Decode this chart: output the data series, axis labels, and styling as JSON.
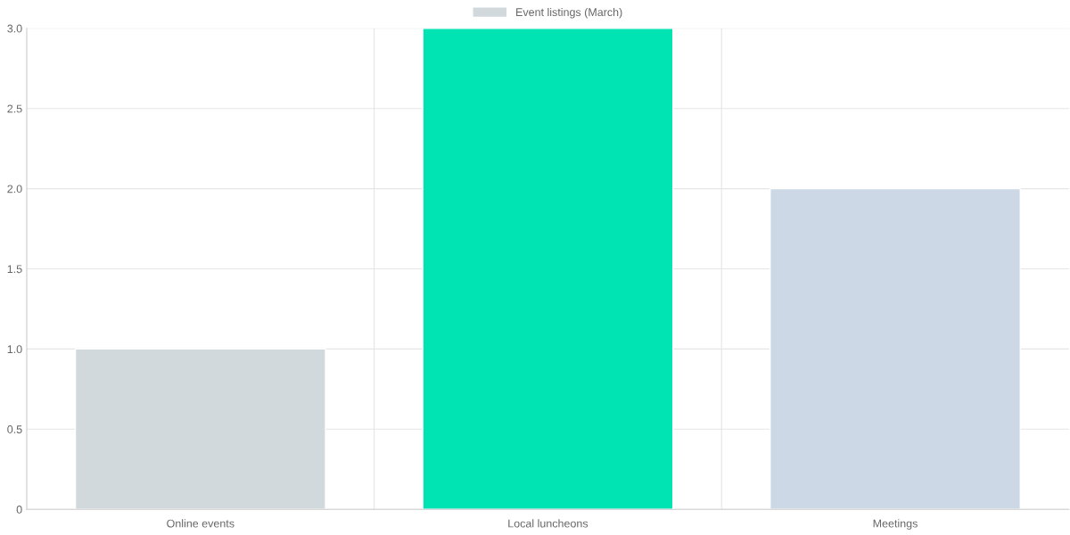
{
  "chart_data": {
    "type": "bar",
    "categories": [
      "Online events",
      "Local luncheons",
      "Meetings"
    ],
    "series": [
      {
        "name": "Event listings (March)",
        "color": "#d2d9dc",
        "colors": [
          "#d2d9dc",
          "#00e3b3",
          "#ccd8e5"
        ],
        "values": [
          1,
          3,
          2
        ]
      }
    ],
    "ylim": [
      0,
      3
    ],
    "yticks": [
      0,
      0.5,
      {
        "value": 1,
        "label": "1.0"
      },
      1.5,
      {
        "value": 2,
        "label": "2.0"
      },
      2.5,
      {
        "value": 3,
        "label": "3.0"
      }
    ],
    "grid": true,
    "legend": "top"
  }
}
